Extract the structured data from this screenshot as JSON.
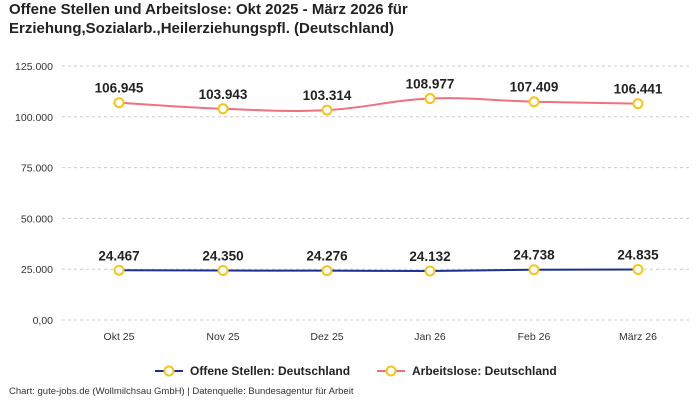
{
  "title": "Offene Stellen und Arbeitslose: Okt 2025 - März 2026 für Erziehung,Sozialarb.,Heilerziehungspfl. (Deutschland)",
  "footer": "Chart: gute-jobs.de (Wollmilchsau GmbH) | Datenquelle: Bundesagentur für Arbeit",
  "chart_data": {
    "type": "line",
    "categories": [
      "Okt 25",
      "Nov 25",
      "Dez 25",
      "Jan 26",
      "Feb 26",
      "März 26"
    ],
    "y_ticks": [
      "0,00",
      "25.000",
      "50.000",
      "75.000",
      "100.000",
      "125.000"
    ],
    "ylim": [
      0,
      125000
    ],
    "grid": true,
    "legend_position": "bottom-center",
    "series": [
      {
        "name": "Offene Stellen: Deutschland",
        "color": "#1f2f8f",
        "marker_color": "#f5c518",
        "values": [
          24467,
          24350,
          24276,
          24132,
          24738,
          24835
        ],
        "labels": [
          "24.467",
          "24.350",
          "24.276",
          "24.132",
          "24.738",
          "24.835"
        ]
      },
      {
        "name": "Arbeitslose: Deutschland",
        "color": "#f07080",
        "marker_color": "#f5c518",
        "values": [
          106945,
          103943,
          103314,
          108977,
          107409,
          106441
        ],
        "labels": [
          "106.945",
          "103.943",
          "103.314",
          "108.977",
          "107.409",
          "106.441"
        ]
      }
    ]
  }
}
